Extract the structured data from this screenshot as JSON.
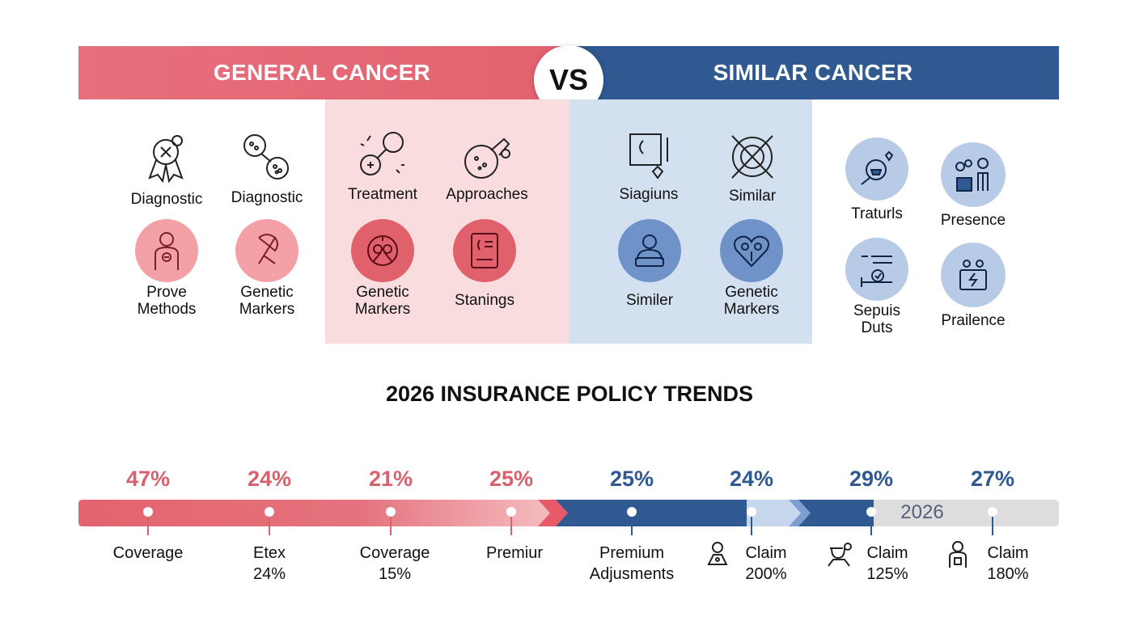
{
  "banner": {
    "left_title": "GENERAL CANCER",
    "right_title": "SIMILAR CANCER",
    "vs": "VS"
  },
  "general_cancer": {
    "items": [
      {
        "label": "Diagnostic",
        "icon": "ribbon-badge-icon"
      },
      {
        "label": "Diagnostic",
        "icon": "dna-tube-icon"
      },
      {
        "label": "Prove\nMethods",
        "icon": "person-icon"
      },
      {
        "label": "Genetic\nMarkers",
        "icon": "ribbon-icon"
      }
    ]
  },
  "middle_pink": {
    "items": [
      {
        "label": "Treatment",
        "icon": "pills-sparkle-icon"
      },
      {
        "label": "Approaches",
        "icon": "cell-tube-icon"
      },
      {
        "label": "Genetic\nMarkers",
        "icon": "molecule-icon"
      },
      {
        "label": "Stanings",
        "icon": "clipboard-icon"
      }
    ]
  },
  "middle_blue": {
    "items": [
      {
        "label": "Siagiuns",
        "icon": "monitor-heart-icon"
      },
      {
        "label": "Similar",
        "icon": "target-cross-icon"
      },
      {
        "label": "Similer",
        "icon": "person-laptop-icon"
      },
      {
        "label": "Genetic\nMarkers",
        "icon": "heart-cells-icon"
      }
    ]
  },
  "similar_cancer": {
    "items": [
      {
        "label": "Traturls",
        "icon": "bowl-heart-icon"
      },
      {
        "label": "Presence",
        "icon": "people-icon"
      },
      {
        "label": "Sepuis\nDuts",
        "icon": "chart-check-icon"
      },
      {
        "label": "Prailence",
        "icon": "card-group-icon"
      }
    ]
  },
  "trends": {
    "title": "2026 INSURANCE POLICY TRENDS",
    "bar_year": "2026",
    "colors": {
      "red": "#d9606d",
      "blue": "#2f5990",
      "grey": "#dddddd"
    },
    "points": [
      {
        "pct": "47%",
        "label": "Coverage",
        "color": "red"
      },
      {
        "pct": "24%",
        "label": "Etex\n24%",
        "color": "red"
      },
      {
        "pct": "21%",
        "label": "Coverage\n15%",
        "color": "red"
      },
      {
        "pct": "25%",
        "label": "Premiur",
        "color": "red"
      },
      {
        "pct": "25%",
        "label": "Premium\nAdjusments",
        "color": "blue"
      },
      {
        "pct": "24%",
        "label": "Claim\n200%",
        "color": "blue",
        "icon": "person-icon"
      },
      {
        "pct": "29%",
        "label": "Claim\n125%",
        "color": "blue",
        "icon": "doctor-icon"
      },
      {
        "pct": "27%",
        "label": "Claim\n180%",
        "color": "blue",
        "icon": "patient-icon"
      }
    ]
  }
}
